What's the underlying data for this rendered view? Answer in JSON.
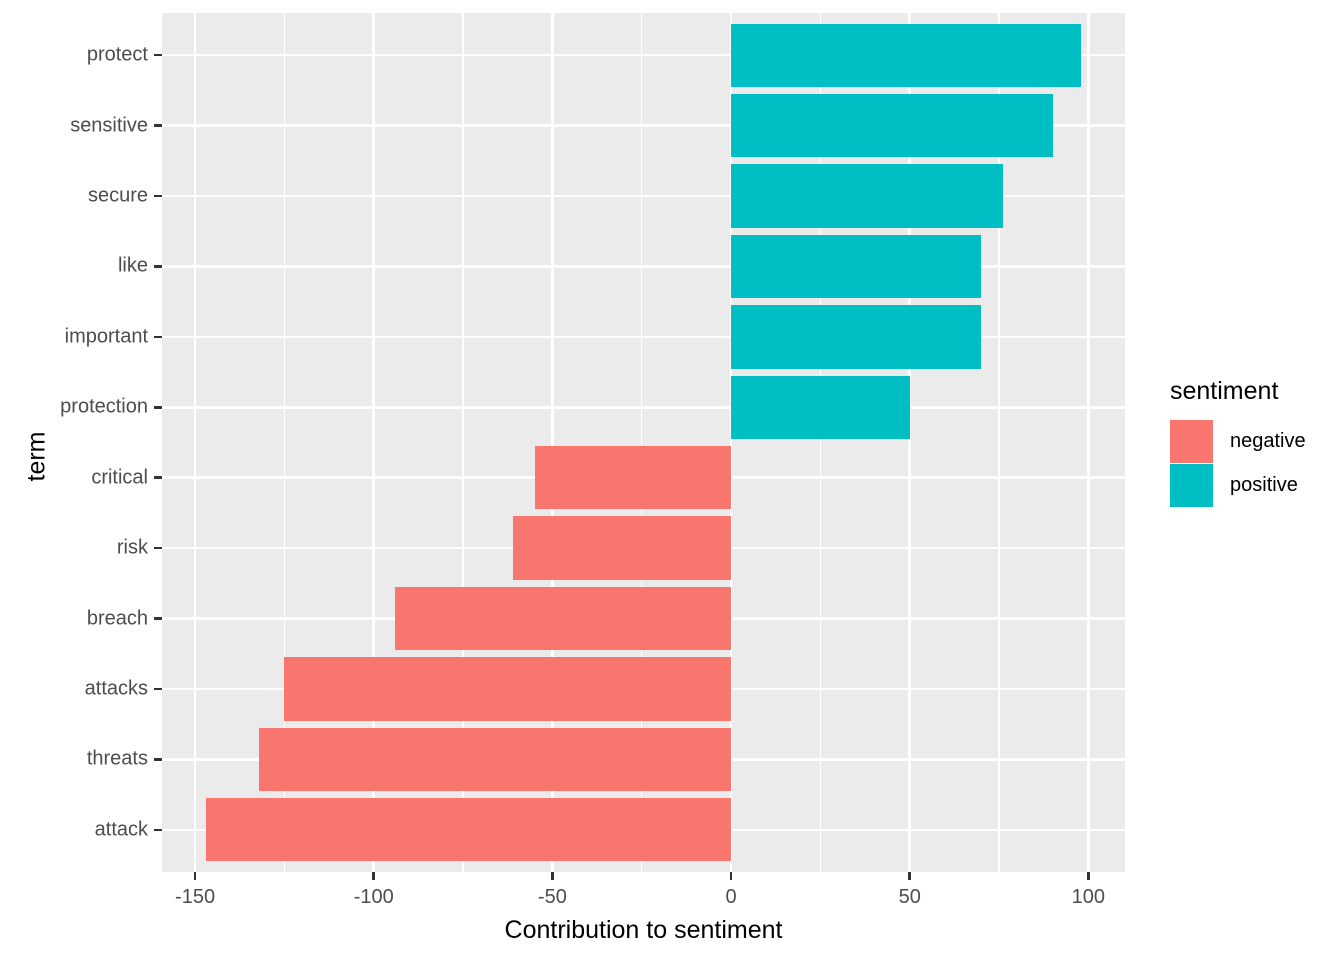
{
  "chart_data": {
    "type": "bar",
    "orientation": "horizontal",
    "title": "",
    "xlabel": "Contribution to sentiment",
    "ylabel": "term",
    "categories": [
      "protect",
      "sensitive",
      "secure",
      "like",
      "important",
      "protection",
      "critical",
      "risk",
      "breach",
      "attacks",
      "threats",
      "attack"
    ],
    "series": [
      {
        "name": "contribution",
        "values": [
          98,
          90,
          76,
          70,
          70,
          50,
          -55,
          -61,
          -94,
          -125,
          -132,
          -147
        ],
        "sentiments": [
          "positive",
          "positive",
          "positive",
          "positive",
          "positive",
          "positive",
          "negative",
          "negative",
          "negative",
          "negative",
          "negative",
          "negative"
        ]
      }
    ],
    "axes": {
      "xlim": [
        -159.25,
        110.25
      ],
      "x_ticks": [
        -150,
        -100,
        -50,
        0,
        50,
        100
      ],
      "x_tick_labels": [
        "-150",
        "-100",
        "-50",
        "0",
        "50",
        "100"
      ],
      "x_minor_ticks": [
        -125,
        -75,
        -25,
        25,
        75
      ],
      "grid": true
    },
    "legend": {
      "title": "sentiment",
      "position": "right",
      "entries": [
        {
          "label": "negative",
          "color": "#F8766D"
        },
        {
          "label": "positive",
          "color": "#00BFC4"
        }
      ]
    },
    "colors": {
      "negative": "#F8766D",
      "positive": "#00BFC4",
      "panel_background": "#EBEBEB",
      "gridline": "#FFFFFF",
      "tick_text": "#4D4D4D",
      "tick_mark": "#333333",
      "axis_title": "#000000"
    }
  }
}
